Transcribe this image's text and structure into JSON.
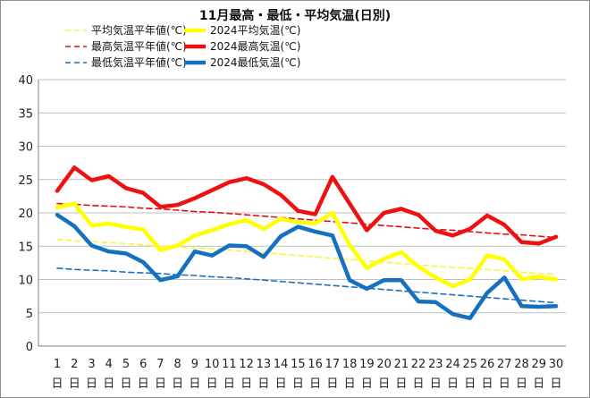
{
  "chart_data": {
    "type": "line",
    "title": "11月最高・最低・平均気温(日別)",
    "xlabel": "",
    "ylabel": "",
    "ylim": [
      0,
      40
    ],
    "yticks": [
      "0",
      "5",
      "10",
      "15",
      "20",
      "25",
      "30",
      "35",
      "40"
    ],
    "x": [
      1,
      2,
      3,
      4,
      5,
      6,
      7,
      8,
      9,
      10,
      11,
      12,
      13,
      14,
      15,
      16,
      17,
      18,
      19,
      20,
      21,
      22,
      23,
      24,
      25,
      26,
      27,
      28,
      29,
      30
    ],
    "x_tick_labels": [
      "1",
      "2",
      "3",
      "4",
      "5",
      "6",
      "7",
      "8",
      "9",
      "10",
      "11",
      "12",
      "13",
      "14",
      "15",
      "16",
      "17",
      "18",
      "19",
      "20",
      "21",
      "22",
      "23",
      "24",
      "25",
      "26",
      "27",
      "28",
      "29",
      "30"
    ],
    "x_unit_label": "日",
    "grid": {
      "horizontal": true,
      "vertical": false
    },
    "legend_position": "top-left",
    "series": [
      {
        "name": "平均気温平年値(℃)",
        "style": "dashed",
        "color": "#f5f542",
        "values": [
          16.0,
          15.8,
          15.7,
          15.5,
          15.4,
          15.2,
          15.0,
          14.9,
          14.7,
          14.6,
          14.4,
          14.2,
          14.0,
          13.8,
          13.6,
          13.4,
          13.2,
          13.0,
          12.8,
          12.6,
          12.4,
          12.2,
          12.0,
          11.8,
          11.7,
          11.5,
          11.3,
          11.1,
          10.9,
          10.8
        ]
      },
      {
        "name": "2024平均気温(℃)",
        "style": "solid",
        "color": "#ffff00",
        "values": [
          20.8,
          21.4,
          18.1,
          18.4,
          17.9,
          17.5,
          14.4,
          15.1,
          16.6,
          17.4,
          18.3,
          18.9,
          17.6,
          19.1,
          18.6,
          18.4,
          20.0,
          15.2,
          11.7,
          13.1,
          14.1,
          11.9,
          10.3,
          9.0,
          10.0,
          13.6,
          13.0,
          10.1,
          10.4,
          10.0
        ]
      },
      {
        "name": "最高気温平年値(℃)",
        "style": "dashed",
        "color": "#e31010",
        "values": [
          21.4,
          21.3,
          21.1,
          21.0,
          20.9,
          20.7,
          20.6,
          20.4,
          20.2,
          20.1,
          19.9,
          19.7,
          19.5,
          19.3,
          19.1,
          18.9,
          18.7,
          18.5,
          18.3,
          18.1,
          17.9,
          17.7,
          17.5,
          17.4,
          17.2,
          17.0,
          16.8,
          16.7,
          16.5,
          16.3
        ]
      },
      {
        "name": "2024最高気温(℃)",
        "style": "solid",
        "color": "#ee1111",
        "values": [
          23.3,
          26.8,
          24.9,
          25.5,
          23.7,
          23.0,
          20.9,
          21.2,
          22.2,
          23.4,
          24.6,
          25.2,
          24.3,
          22.7,
          20.3,
          19.8,
          25.4,
          21.4,
          17.4,
          20.0,
          20.6,
          19.7,
          17.3,
          16.6,
          17.6,
          19.6,
          18.2,
          15.6,
          15.4,
          16.4
        ]
      },
      {
        "name": "最低気温平年値(℃)",
        "style": "dashed",
        "color": "#1f6fbf",
        "values": [
          11.7,
          11.5,
          11.4,
          11.3,
          11.1,
          11.0,
          10.9,
          10.7,
          10.6,
          10.4,
          10.3,
          10.1,
          9.9,
          9.7,
          9.5,
          9.3,
          9.1,
          8.9,
          8.7,
          8.5,
          8.3,
          8.1,
          7.9,
          7.7,
          7.5,
          7.3,
          7.1,
          6.9,
          6.7,
          6.5
        ]
      },
      {
        "name": "2024最低気温(℃)",
        "style": "solid",
        "color": "#1670c0",
        "values": [
          19.7,
          18.0,
          15.1,
          14.2,
          13.9,
          12.6,
          9.9,
          10.5,
          14.2,
          13.6,
          15.1,
          15.0,
          13.4,
          16.5,
          17.9,
          17.2,
          16.6,
          9.9,
          8.6,
          9.9,
          9.9,
          6.7,
          6.6,
          4.8,
          4.2,
          8.0,
          10.3,
          6.0,
          5.9,
          6.0
        ]
      }
    ]
  }
}
